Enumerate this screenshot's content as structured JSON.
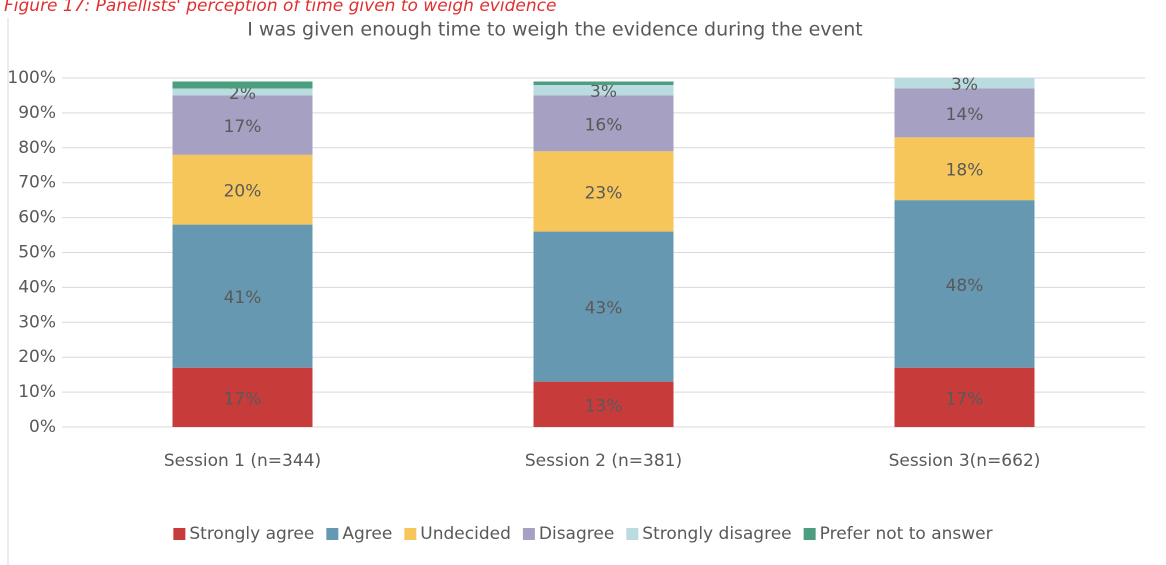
{
  "chart_data": {
    "type": "stacked_bar",
    "caption": "Figure 17: Panellists' perception of time given to weigh evidence",
    "title": "I was given enough time to weigh the evidence during the event",
    "categories": [
      "Session 1 (n=344)",
      "Session 2 (n=381)",
      "Session 3(n=662)"
    ],
    "series": [
      {
        "name": "Strongly agree",
        "color": "#c73b3b",
        "values": [
          17,
          13,
          17
        ],
        "value_labels": [
          "17%",
          "13%",
          "17%"
        ]
      },
      {
        "name": "Agree",
        "color": "#6699b1",
        "values": [
          41,
          43,
          48
        ],
        "value_labels": [
          "41%",
          "43%",
          "48%"
        ]
      },
      {
        "name": "Undecided",
        "color": "#f7c65a",
        "values": [
          20,
          23,
          18
        ],
        "value_labels": [
          "20%",
          "23%",
          "18%"
        ]
      },
      {
        "name": "Disagree",
        "color": "#a6a0c2",
        "values": [
          17,
          16,
          14
        ],
        "value_labels": [
          "17%",
          "16%",
          "14%"
        ]
      },
      {
        "name": "Strongly disagree",
        "color": "#badbe0",
        "values": [
          2,
          3,
          3
        ],
        "value_labels": [
          "2%",
          "3%",
          "3%"
        ]
      },
      {
        "name": "Prefer not to answer",
        "color": "#4b9e7e",
        "values": [
          2,
          1,
          0
        ],
        "value_labels": [
          null,
          null,
          null
        ]
      }
    ],
    "ylim": [
      0,
      100
    ],
    "yticks": [
      {
        "value": 0,
        "label": "0%"
      },
      {
        "value": 10,
        "label": "10%"
      },
      {
        "value": 20,
        "label": "20%"
      },
      {
        "value": 30,
        "label": "30%"
      },
      {
        "value": 40,
        "label": "40%"
      },
      {
        "value": 50,
        "label": "50%"
      },
      {
        "value": 60,
        "label": "60%"
      },
      {
        "value": 70,
        "label": "70%"
      },
      {
        "value": 80,
        "label": "80%"
      },
      {
        "value": 90,
        "label": "90%"
      },
      {
        "value": 100,
        "label": "100%"
      }
    ],
    "grid": true,
    "legend": "bottom"
  }
}
